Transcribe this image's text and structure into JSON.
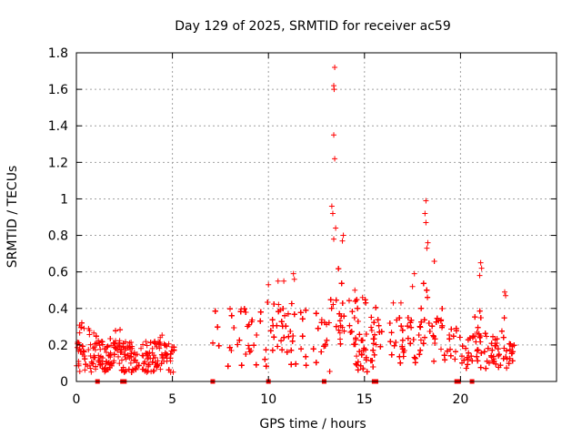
{
  "chart_data": {
    "type": "scatter",
    "title": "Day 129 of 2025, SRMTID for receiver ac59",
    "xlabel": "GPS time / hours",
    "ylabel": "SRMTID / TECUs",
    "xlim": [
      0,
      25
    ],
    "ylim": [
      0,
      1.8
    ],
    "xticks": [
      0,
      5,
      10,
      15,
      20
    ],
    "yticks": [
      0,
      0.2,
      0.4,
      0.6,
      0.8,
      1.0,
      1.2,
      1.4,
      1.6,
      1.8
    ],
    "xtick_labels": [
      "0",
      "5",
      "10",
      "15",
      "20"
    ],
    "ytick_labels": [
      "0",
      "0.2",
      "0.4",
      "0.6",
      "0.8",
      "1",
      "1.2",
      "1.4",
      "1.6",
      "1.8"
    ],
    "grid": true,
    "marker": "plus",
    "color": "#ff0000",
    "zero_markers_x": [
      1.1,
      2.4,
      2.5,
      7.1,
      10.0,
      12.9,
      15.5,
      15.6,
      19.8,
      19.9,
      20.6
    ],
    "spikes": [
      {
        "x": 13.45,
        "y": 1.72
      },
      {
        "x": 13.4,
        "y": 1.62
      },
      {
        "x": 13.42,
        "y": 1.6
      },
      {
        "x": 13.4,
        "y": 1.35
      },
      {
        "x": 13.45,
        "y": 1.22
      },
      {
        "x": 13.3,
        "y": 0.96
      },
      {
        "x": 13.35,
        "y": 0.92
      },
      {
        "x": 13.5,
        "y": 0.84
      },
      {
        "x": 13.4,
        "y": 0.78
      },
      {
        "x": 13.9,
        "y": 0.8
      },
      {
        "x": 13.85,
        "y": 0.77
      },
      {
        "x": 18.2,
        "y": 0.99
      },
      {
        "x": 18.15,
        "y": 0.92
      },
      {
        "x": 18.2,
        "y": 0.87
      },
      {
        "x": 18.3,
        "y": 0.76
      },
      {
        "x": 18.25,
        "y": 0.73
      },
      {
        "x": 21.05,
        "y": 0.65
      },
      {
        "x": 21.1,
        "y": 0.62
      },
      {
        "x": 21.0,
        "y": 0.58
      },
      {
        "x": 11.3,
        "y": 0.59
      },
      {
        "x": 11.35,
        "y": 0.56
      },
      {
        "x": 10.0,
        "y": 0.53
      },
      {
        "x": 10.5,
        "y": 0.55
      },
      {
        "x": 10.8,
        "y": 0.55
      },
      {
        "x": 17.6,
        "y": 0.59
      },
      {
        "x": 17.5,
        "y": 0.52
      },
      {
        "x": 22.3,
        "y": 0.49
      },
      {
        "x": 22.35,
        "y": 0.47
      },
      {
        "x": 16.5,
        "y": 0.43
      },
      {
        "x": 16.9,
        "y": 0.43
      },
      {
        "x": 14.5,
        "y": 0.5
      },
      {
        "x": 14.9,
        "y": 0.46
      }
    ],
    "segments": [
      {
        "x_start": 0.0,
        "x_end": 5.1,
        "y_low": 0.05,
        "y_high": 0.22,
        "bumps": [
          {
            "x": 0.4,
            "y": 0.35
          },
          {
            "x": 2.1,
            "y": 0.36
          },
          {
            "x": 4.4,
            "y": 0.26
          },
          {
            "x": 0.8,
            "y": 0.28
          }
        ]
      },
      {
        "x_start": 7.1,
        "x_end": 12.8,
        "y_low": 0.08,
        "y_high": 0.4,
        "bumps": [
          {
            "x": 8.0,
            "y": 0.32
          },
          {
            "x": 9.0,
            "y": 0.38
          },
          {
            "x": 10.2,
            "y": 0.48
          },
          {
            "x": 11.0,
            "y": 0.44
          },
          {
            "x": 12.4,
            "y": 0.36
          }
        ]
      },
      {
        "x_start": 12.8,
        "x_end": 15.6,
        "y_low": 0.05,
        "y_high": 0.45,
        "bumps": [
          {
            "x": 13.5,
            "y": 0.62
          },
          {
            "x": 13.8,
            "y": 0.55
          },
          {
            "x": 14.2,
            "y": 0.4
          }
        ]
      },
      {
        "x_start": 15.6,
        "x_end": 19.8,
        "y_low": 0.1,
        "y_high": 0.35,
        "bumps": [
          {
            "x": 17.8,
            "y": 0.45
          },
          {
            "x": 18.3,
            "y": 0.68
          },
          {
            "x": 19.0,
            "y": 0.4
          }
        ]
      },
      {
        "x_start": 19.9,
        "x_end": 22.8,
        "y_low": 0.07,
        "y_high": 0.25,
        "bumps": [
          {
            "x": 21.0,
            "y": 0.45
          },
          {
            "x": 22.3,
            "y": 0.35
          }
        ]
      }
    ]
  }
}
